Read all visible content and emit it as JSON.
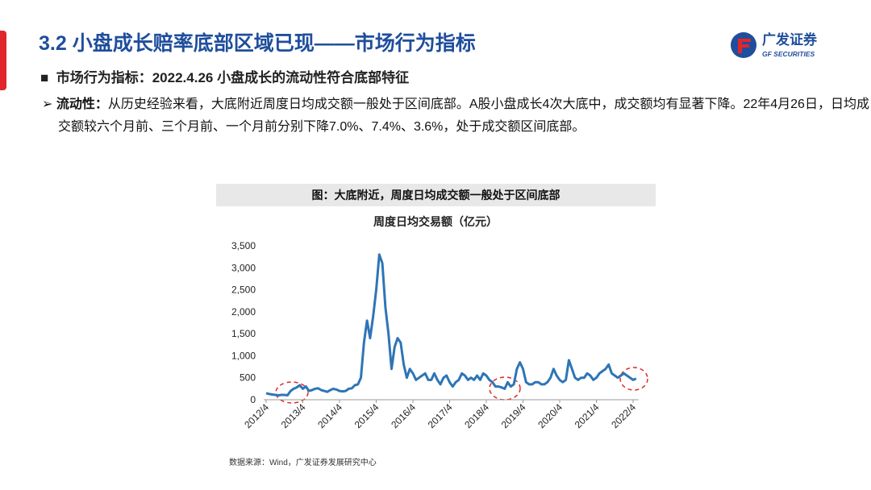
{
  "header": {
    "title": "3.2  小盘成长赔率底部区域已现——市场行为指标",
    "logo": "广发证券",
    "logo_en": "GF SECURITIES"
  },
  "subtitle": "市场行为指标：2022.4.26 小盘成长的流动性符合底部特征",
  "bullet": {
    "label": "流动性：",
    "text": "从历史经验来看，大底附近周度日均成交额一般处于区间底部。A股小盘成长4次大底中，成交额均有显著下降。22年4月26日，日均成交额较六个月前、三个月前、一个月前分别下降7.0%、7.4%、3.6%，处于成交额区间底部。"
  },
  "figure_caption": "图：大底附近，周度日均成交额一般处于区间底部",
  "source": "数据来源：Wind，广发证券发展研究中心",
  "chart_data": {
    "type": "line",
    "title": "周度日均交易额（亿元）",
    "color": "#2e75b6",
    "grid": false,
    "x": [
      "2012/4",
      "2012/5",
      "2012/6",
      "2012/7",
      "2012/8",
      "2012/9",
      "2012/10",
      "2012/11",
      "2012/12",
      "2013/1",
      "2013/2",
      "2013/3",
      "2013/4",
      "2013/5",
      "2013/6",
      "2013/7",
      "2013/8",
      "2013/9",
      "2013/10",
      "2013/11",
      "2013/12",
      "2014/1",
      "2014/2",
      "2014/3",
      "2014/4",
      "2014/5",
      "2014/6",
      "2014/7",
      "2014/8",
      "2014/9",
      "2014/10",
      "2014/11",
      "2014/12",
      "2015/1",
      "2015/2",
      "2015/3",
      "2015/4",
      "2015/5",
      "2015/6",
      "2015/7",
      "2015/8",
      "2015/9",
      "2015/10",
      "2015/11",
      "2015/12",
      "2016/1",
      "2016/2",
      "2016/3",
      "2016/4",
      "2016/5",
      "2016/6",
      "2016/7",
      "2016/8",
      "2016/9",
      "2016/10",
      "2016/11",
      "2016/12",
      "2017/1",
      "2017/2",
      "2017/3",
      "2017/4",
      "2017/5",
      "2017/6",
      "2017/7",
      "2017/8",
      "2017/9",
      "2017/10",
      "2017/11",
      "2017/12",
      "2018/1",
      "2018/2",
      "2018/3",
      "2018/4",
      "2018/5",
      "2018/6",
      "2018/7",
      "2018/8",
      "2018/9",
      "2018/10",
      "2018/11",
      "2018/12",
      "2019/1",
      "2019/2",
      "2019/3",
      "2019/4",
      "2019/5",
      "2019/6",
      "2019/7",
      "2019/8",
      "2019/9",
      "2019/10",
      "2019/11",
      "2019/12",
      "2020/1",
      "2020/2",
      "2020/3",
      "2020/4",
      "2020/5",
      "2020/6",
      "2020/7",
      "2020/8",
      "2020/9",
      "2020/10",
      "2020/11",
      "2020/12",
      "2021/1",
      "2021/2",
      "2021/3",
      "2021/4",
      "2021/5",
      "2021/6",
      "2021/7",
      "2021/8",
      "2021/9",
      "2021/10",
      "2021/11",
      "2021/12",
      "2022/1",
      "2022/2",
      "2022/3",
      "2022/4",
      "2022/5"
    ],
    "values": [
      150,
      130,
      120,
      110,
      100,
      110,
      110,
      100,
      200,
      250,
      280,
      330,
      250,
      300,
      200,
      220,
      250,
      260,
      220,
      200,
      180,
      220,
      250,
      230,
      200,
      190,
      200,
      250,
      260,
      330,
      350,
      500,
      1300,
      1800,
      1400,
      1900,
      2500,
      3300,
      3100,
      2100,
      1500,
      700,
      1200,
      1400,
      1300,
      800,
      500,
      700,
      600,
      450,
      500,
      550,
      600,
      450,
      450,
      600,
      450,
      350,
      500,
      550,
      400,
      300,
      400,
      450,
      600,
      550,
      450,
      500,
      450,
      550,
      450,
      600,
      550,
      450,
      400,
      300,
      300,
      280,
      250,
      400,
      300,
      350,
      700,
      850,
      700,
      400,
      350,
      350,
      400,
      400,
      350,
      350,
      400,
      500,
      700,
      550,
      450,
      400,
      450,
      900,
      700,
      500,
      450,
      500,
      500,
      600,
      550,
      450,
      500,
      600,
      650,
      700,
      800,
      600,
      550,
      500,
      550,
      600,
      550,
      500,
      450,
      480
    ],
    "xticks": [
      0,
      12,
      24,
      36,
      48,
      60,
      72,
      84,
      96,
      108,
      120
    ],
    "ylim": [
      0,
      3500
    ],
    "yticks": [
      0,
      {
        "value": 500,
        "label": "500"
      },
      {
        "value": 1000,
        "label": "1,000"
      },
      {
        "value": 1500,
        "label": "1,500"
      },
      {
        "value": 2000,
        "label": "2,000"
      },
      {
        "value": 2500,
        "label": "2,500"
      },
      {
        "value": 3000,
        "label": "3,000"
      },
      {
        "value": 3500,
        "label": "3,500"
      }
    ]
  }
}
